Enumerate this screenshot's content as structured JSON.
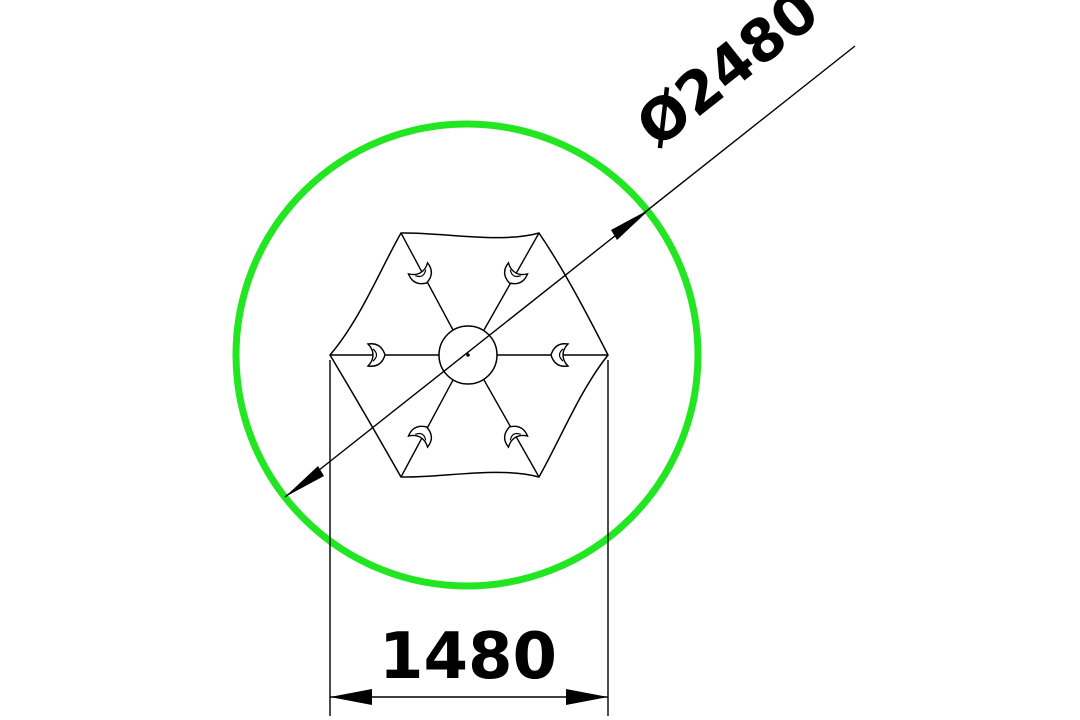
{
  "dimensions": {
    "diameter_label": "Ø2480",
    "width_label": "1480"
  },
  "colors": {
    "safety_zone": "#22e622",
    "lines": "#000000",
    "background": "#ffffff"
  },
  "parts": {
    "seat_count": 6
  }
}
